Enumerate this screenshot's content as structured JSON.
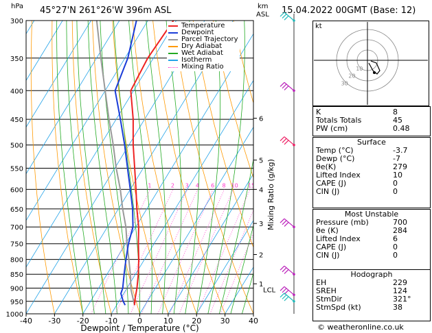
{
  "header": {
    "location": "45°27'N  261°26'W  396m  ASL",
    "datetime": "15.04.2022  00GMT  (Base: 12)",
    "hpa_label": "hPa",
    "km_label": "km",
    "asl_label": "ASL"
  },
  "chart_data": {
    "type": "skew-t",
    "xlabel": "Dewpoint / Temperature (°C)",
    "ylabel_right": "Mixing Ratio (g/kg)",
    "xlim": [
      -40,
      40
    ],
    "ylim_hpa": [
      1000,
      300
    ],
    "x_ticks": [
      "-40",
      "-30",
      "-20",
      "-10",
      "0",
      "10",
      "20",
      "30",
      "40"
    ],
    "pressure_levels": [
      300,
      350,
      400,
      450,
      500,
      550,
      600,
      650,
      700,
      750,
      800,
      850,
      900,
      950,
      1000
    ],
    "km_ticks": [
      {
        "km": "1",
        "p": 884
      },
      {
        "km": "2",
        "p": 784
      },
      {
        "km": "3",
        "p": 690
      },
      {
        "km": "4",
        "p": 600
      },
      {
        "km": "5",
        "p": 532
      },
      {
        "km": "6",
        "p": 448
      }
    ],
    "lcl": {
      "label": "LCL",
      "p": 905
    },
    "mixing_ratio_labels": [
      "1",
      "2",
      "3",
      "4",
      "6",
      "8",
      "10",
      "15",
      "20",
      "25"
    ],
    "mixing_ratio_values": [
      1,
      2,
      3,
      4,
      6,
      8,
      10,
      15,
      20,
      25
    ],
    "legend": [
      {
        "name": "Temperature",
        "color": "#ee2222"
      },
      {
        "name": "Dewpoint",
        "color": "#1a3cd8"
      },
      {
        "name": "Parcel Trajectory",
        "color": "#999999"
      },
      {
        "name": "Dry Adiabat",
        "color": "#ff9900"
      },
      {
        "name": "Wet Adiabat",
        "color": "#22aa22"
      },
      {
        "name": "Isotherm",
        "color": "#22a3e8"
      },
      {
        "name": "Mixing Ratio",
        "color": "#ff33cc"
      }
    ],
    "temperature": [
      {
        "p": 965,
        "t": -3.7
      },
      {
        "p": 950,
        "t": -4.5
      },
      {
        "p": 900,
        "t": -6.5
      },
      {
        "p": 850,
        "t": -9
      },
      {
        "p": 800,
        "t": -12
      },
      {
        "p": 750,
        "t": -15.5
      },
      {
        "p": 700,
        "t": -19
      },
      {
        "p": 650,
        "t": -23.5
      },
      {
        "p": 600,
        "t": -28
      },
      {
        "p": 550,
        "t": -33
      },
      {
        "p": 500,
        "t": -38.5
      },
      {
        "p": 450,
        "t": -44
      },
      {
        "p": 400,
        "t": -51
      },
      {
        "p": 350,
        "t": -52
      },
      {
        "p": 300,
        "t": -51
      }
    ],
    "dewpoint": [
      {
        "p": 965,
        "t": -7
      },
      {
        "p": 950,
        "t": -8.5
      },
      {
        "p": 920,
        "t": -11
      },
      {
        "p": 900,
        "t": -11.5
      },
      {
        "p": 850,
        "t": -14
      },
      {
        "p": 800,
        "t": -16.5
      },
      {
        "p": 750,
        "t": -19
      },
      {
        "p": 700,
        "t": -21
      },
      {
        "p": 650,
        "t": -25
      },
      {
        "p": 600,
        "t": -30
      },
      {
        "p": 550,
        "t": -35.5
      },
      {
        "p": 500,
        "t": -41.5
      },
      {
        "p": 450,
        "t": -48.5
      },
      {
        "p": 400,
        "t": -56.5
      },
      {
        "p": 350,
        "t": -59
      },
      {
        "p": 300,
        "t": -64
      }
    ],
    "parcel": [
      {
        "p": 965,
        "t": -3.7
      },
      {
        "p": 905,
        "t": -8.3
      },
      {
        "p": 850,
        "t": -11.8
      },
      {
        "p": 800,
        "t": -15.5
      },
      {
        "p": 750,
        "t": -19.5
      },
      {
        "p": 700,
        "t": -23.5
      },
      {
        "p": 650,
        "t": -28.5
      },
      {
        "p": 600,
        "t": -33.5
      },
      {
        "p": 550,
        "t": -39.5
      },
      {
        "p": 500,
        "t": -45.5
      },
      {
        "p": 450,
        "t": -52.5
      },
      {
        "p": 400,
        "t": -60
      },
      {
        "p": 350,
        "t": -68.5
      },
      {
        "p": 300,
        "t": -78
      }
    ]
  },
  "wind_barbs": [
    {
      "p": 300,
      "color": "#22bbbb"
    },
    {
      "p": 400,
      "color": "#bb22bb"
    },
    {
      "p": 500,
      "color": "#ee2266"
    },
    {
      "p": 700,
      "color": "#bb22bb"
    },
    {
      "p": 850,
      "color": "#bb22bb"
    },
    {
      "p": 925,
      "color": "#bb22bb"
    },
    {
      "p": 950,
      "color": "#22bbbb"
    }
  ],
  "hodograph": {
    "unit_label": "kt",
    "ring_labels": [
      "10",
      "20",
      "30"
    ]
  },
  "indices": {
    "k_label": "K",
    "k": "8",
    "tt_label": "Totals Totals",
    "tt": "45",
    "pw_label": "PW (cm)",
    "pw": "0.48"
  },
  "surface": {
    "title": "Surface",
    "rows": [
      {
        "label": "Temp (°C)",
        "value": "-3.7"
      },
      {
        "label": "Dewp (°C)",
        "value": "-7"
      },
      {
        "label": "θe(K)",
        "value": "279"
      },
      {
        "label": "Lifted Index",
        "value": "10"
      },
      {
        "label": "CAPE (J)",
        "value": "0"
      },
      {
        "label": "CIN (J)",
        "value": "0"
      }
    ]
  },
  "most_unstable": {
    "title": "Most Unstable",
    "rows": [
      {
        "label": "Pressure (mb)",
        "value": "700"
      },
      {
        "label": "θe (K)",
        "value": "284"
      },
      {
        "label": "Lifted Index",
        "value": "6"
      },
      {
        "label": "CAPE (J)",
        "value": "0"
      },
      {
        "label": "CIN (J)",
        "value": "0"
      }
    ]
  },
  "hodograph_table": {
    "title": "Hodograph",
    "rows": [
      {
        "label": "EH",
        "value": "229"
      },
      {
        "label": "SREH",
        "value": "124"
      },
      {
        "label": "StmDir",
        "value": "321°"
      },
      {
        "label": "StmSpd (kt)",
        "value": "38"
      }
    ]
  },
  "footer": {
    "copyright": "© weatheronline.co.uk"
  }
}
